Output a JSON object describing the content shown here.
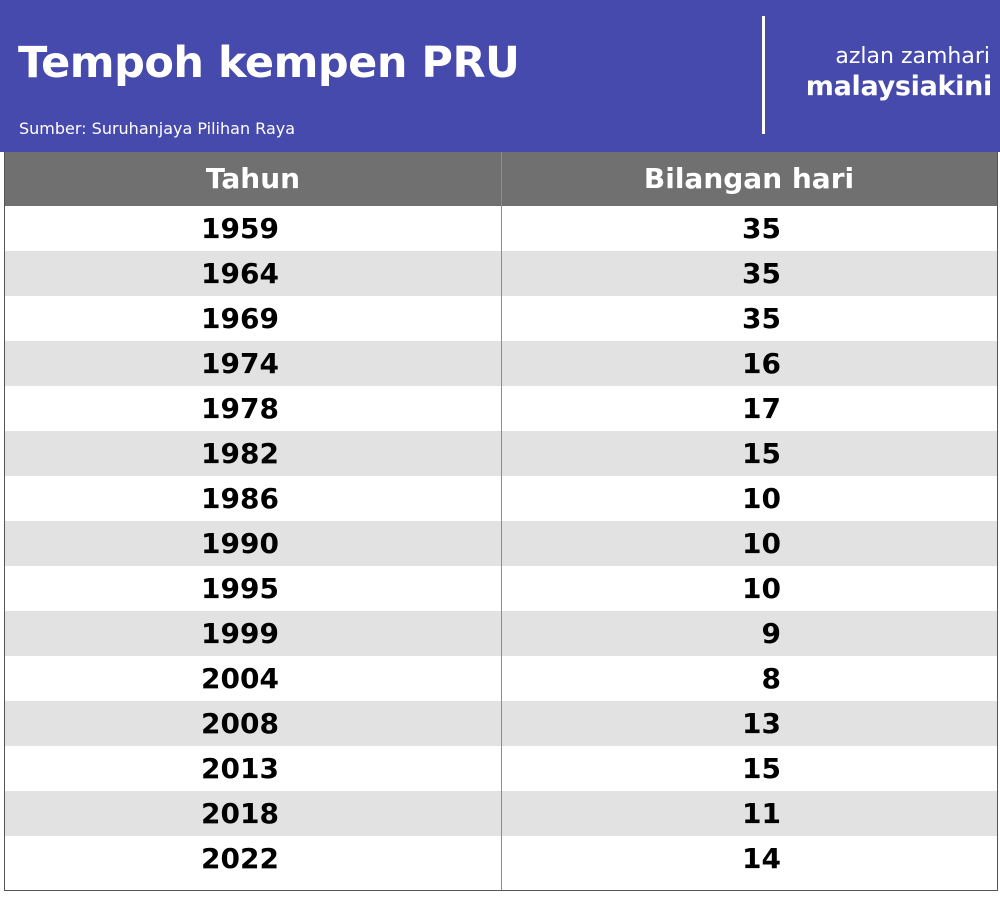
{
  "header": {
    "title": "Tempoh kempen PRU",
    "source": "Sumber: Suruhanjaya Pilihan Raya",
    "author": "azlan zamhari",
    "brand": "malaysiakini",
    "background_color": "#474aad"
  },
  "chart_data": {
    "type": "table",
    "title": "Tempoh kempen PRU",
    "columns": [
      "Tahun",
      "Bilangan hari"
    ],
    "rows": [
      [
        "1959",
        "35"
      ],
      [
        "1964",
        "35"
      ],
      [
        "1969",
        "35"
      ],
      [
        "1974",
        "16"
      ],
      [
        "1978",
        "17"
      ],
      [
        "1982",
        "15"
      ],
      [
        "1986",
        "10"
      ],
      [
        "1990",
        "10"
      ],
      [
        "1995",
        "10"
      ],
      [
        "1999",
        "9"
      ],
      [
        "2004",
        "8"
      ],
      [
        "2008",
        "13"
      ],
      [
        "2013",
        "15"
      ],
      [
        "2018",
        "11"
      ],
      [
        "2022",
        "14"
      ]
    ],
    "header_color": "#707070",
    "stripe_color": "#e2e2e2",
    "divider_color": "#d2783c"
  }
}
